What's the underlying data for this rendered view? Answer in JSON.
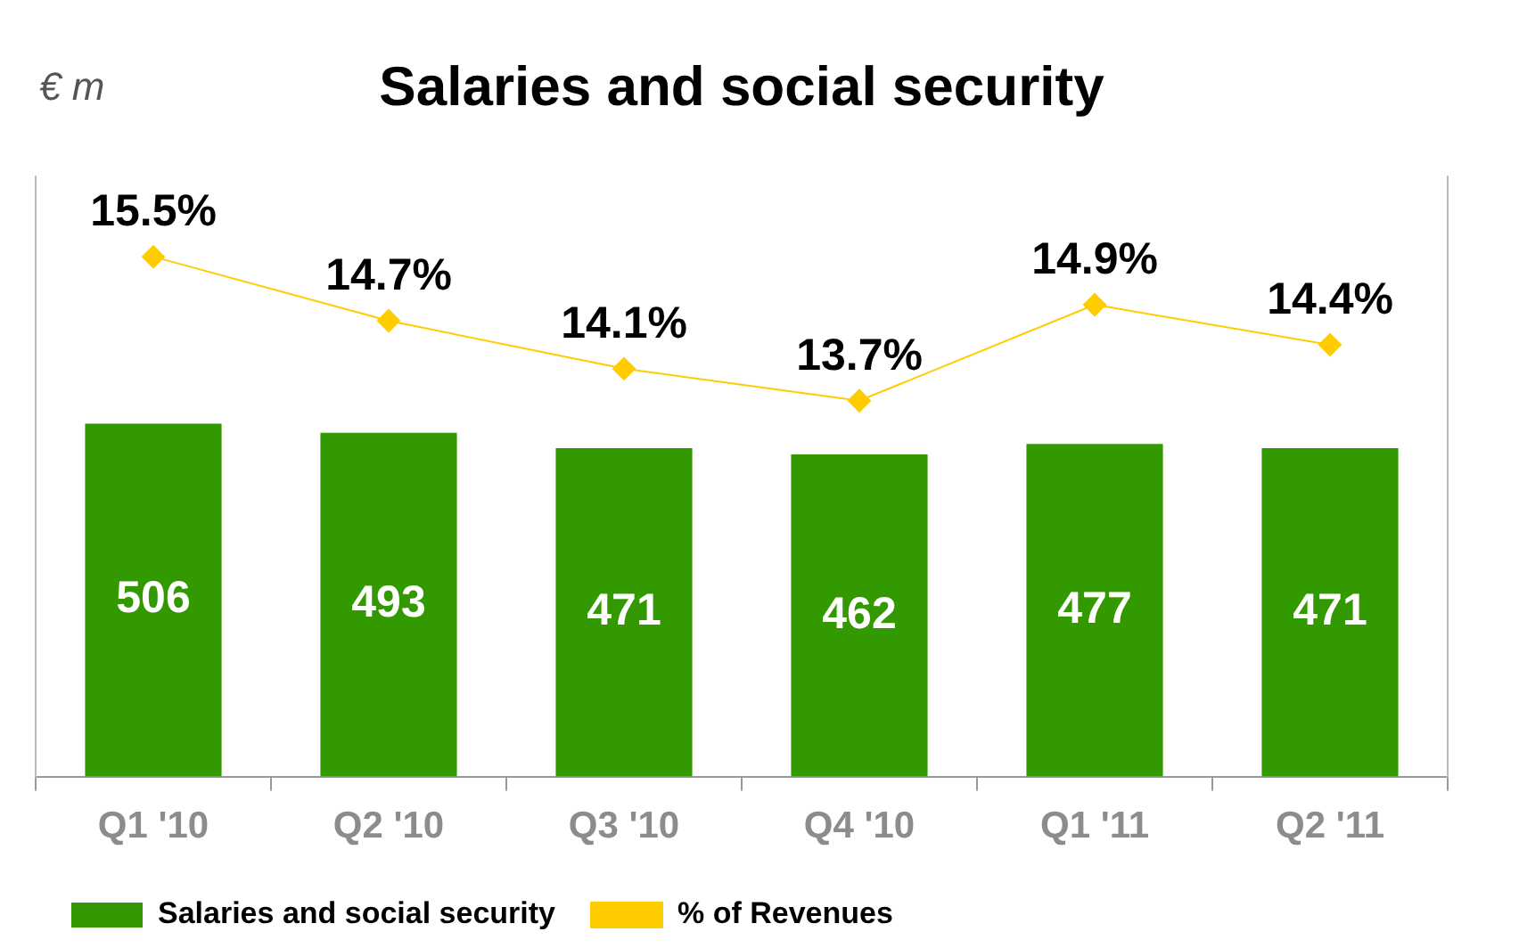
{
  "chart_data": {
    "type": "bar",
    "title": "Salaries and social security",
    "annotations": [
      "€ m"
    ],
    "categories": [
      "Q1 '10",
      "Q2 '10",
      "Q3 '10",
      "Q4 '10",
      "Q1 '11",
      "Q2 '11"
    ],
    "legend": "bottom",
    "grid": false,
    "ylim": [
      0,
      860
    ],
    "y2lim": [
      9,
      16.5
    ],
    "series": [
      {
        "name": "Salaries and social security",
        "color": "#339900",
        "values": [
          506,
          493,
          471,
          462,
          477,
          471
        ],
        "value_labels": [
          "506",
          "493",
          "471",
          "462",
          "477",
          "471"
        ]
      },
      {
        "name": "% of Revenues",
        "type": "line",
        "axis": "y2",
        "color": "#ffcc00",
        "marker": "diamond",
        "values": [
          15.5,
          14.7,
          14.1,
          13.7,
          14.9,
          14.4
        ],
        "value_labels": [
          "15.5%",
          "14.7%",
          "14.1%",
          "13.7%",
          "14.9%",
          "14.4%"
        ]
      }
    ]
  }
}
